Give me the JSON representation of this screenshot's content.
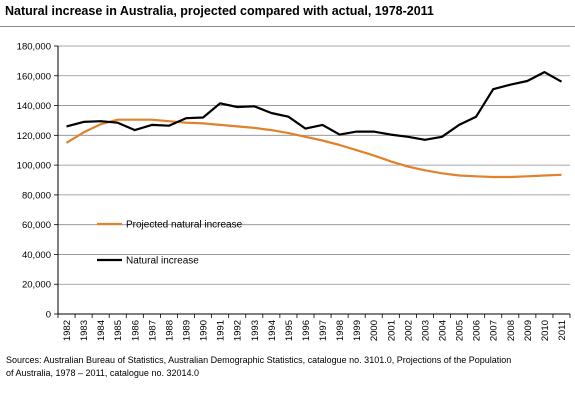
{
  "title": "Natural increase in Australia, projected compared with actual, 1978-2011",
  "chart_data": {
    "type": "line",
    "title": "Natural increase in Australia, projected compared with actual, 1978-2011",
    "xlabel": "",
    "ylabel": "",
    "categories": [
      "1982",
      "1983",
      "1984",
      "1985",
      "1986",
      "1987",
      "1988",
      "1989",
      "1990",
      "1991",
      "1992",
      "1993",
      "1994",
      "1995",
      "1996",
      "1997",
      "1998",
      "1999",
      "2000",
      "2001",
      "2002",
      "2003",
      "2004",
      "2005",
      "2006",
      "2007",
      "2008",
      "2009",
      "2010",
      "2011"
    ],
    "y_ticks": [
      "0",
      "20,000",
      "40,000",
      "60,000",
      "80,000",
      "100,000",
      "120,000",
      "140,000",
      "160,000",
      "180,000"
    ],
    "ylim": [
      0,
      180000
    ],
    "grid": true,
    "legend_position": "center-left",
    "series": [
      {
        "name": "Projected natural increase",
        "color": "#e0812b",
        "values": [
          115000,
          122000,
          127500,
          130500,
          130500,
          130500,
          129500,
          128500,
          128000,
          127000,
          126000,
          125000,
          123500,
          121500,
          119000,
          116500,
          113500,
          110000,
          106500,
          102500,
          99000,
          96500,
          94500,
          93000,
          92500,
          92000,
          92000,
          92500,
          93000,
          93500
        ]
      },
      {
        "name": "Natural increase",
        "color": "#000000",
        "values": [
          126000,
          129000,
          129500,
          128500,
          123500,
          127000,
          126500,
          131500,
          132000,
          141500,
          139000,
          139500,
          135000,
          132500,
          124500,
          127000,
          120500,
          122500,
          122500,
          120500,
          119000,
          117000,
          119000,
          127000,
          132500,
          151000,
          154000,
          156500,
          162500,
          156000
        ]
      }
    ]
  },
  "source": {
    "line1": "Sources: Australian Bureau of Statistics, Australian Demographic Statistics, catalogue no. 3101.0, Projections of the Population",
    "line2": "of Australia, 1978 – 2011, catalogue no. 32014.0"
  }
}
